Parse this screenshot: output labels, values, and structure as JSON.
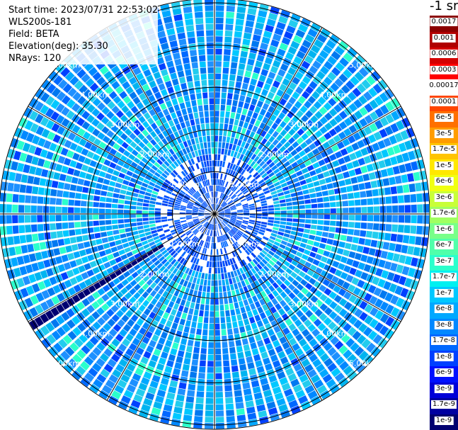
{
  "header": {
    "start_time": "Start time: 2023/07/31 22:53:02",
    "instrument": "WLS200s-181",
    "field": "Field: BETA",
    "elevation": "Elevation(deg): 35.30",
    "nrays": "NRays: 120"
  },
  "colorbar": {
    "units_label": "-1 sr",
    "levels": [
      {
        "label": "0.0017",
        "color": "#8b0000"
      },
      {
        "label": "0.001",
        "color": "#b00000"
      },
      {
        "label": "0.0006",
        "color": "#d40000"
      },
      {
        "label": "0.0003",
        "color": "#ff0000"
      },
      {
        "label": "0.00017",
        "color": "#ffffff"
      },
      {
        "label": "0.0001",
        "color": "#ff4500"
      },
      {
        "label": "6e-5",
        "color": "#ff7000"
      },
      {
        "label": "3e-5",
        "color": "#ff9c00"
      },
      {
        "label": "1.7e-5",
        "color": "#ffc400"
      },
      {
        "label": "1e-5",
        "color": "#ffe800"
      },
      {
        "label": "6e-6",
        "color": "#f0ff10"
      },
      {
        "label": "3e-6",
        "color": "#c8ff38"
      },
      {
        "label": "1.7e-6",
        "color": "#a0ff60"
      },
      {
        "label": "1e-6",
        "color": "#78ff88"
      },
      {
        "label": "6e-7",
        "color": "#50ffaa"
      },
      {
        "label": "3e-7",
        "color": "#2affcc"
      },
      {
        "label": "1.7e-7",
        "color": "#00f0f0"
      },
      {
        "label": "1e-7",
        "color": "#00c8ff"
      },
      {
        "label": "6e-8",
        "color": "#00a8ff"
      },
      {
        "label": "3e-8",
        "color": "#0088ff"
      },
      {
        "label": "1.7e-8",
        "color": "#0068ff"
      },
      {
        "label": "1e-8",
        "color": "#0040ff"
      },
      {
        "label": "6e-9",
        "color": "#0010ff"
      },
      {
        "label": "3e-9",
        "color": "#0000d8"
      },
      {
        "label": "1.7e-9",
        "color": "#0000a0"
      },
      {
        "label": "1e-9",
        "color": "#000070"
      }
    ]
  },
  "chart_data": {
    "type": "heatmap",
    "projection": "polar PPI",
    "field": "BETA",
    "n_rays": 120,
    "range_ring_labels": [
      "1.00km",
      "2.00km",
      "3.00km",
      "4.00km",
      "5.00km"
    ],
    "ring_ranges_km": [
      1,
      2,
      3,
      4,
      5
    ],
    "max_range_km": 5.1,
    "spoke_bearings_deg": [
      0,
      30,
      60,
      90,
      120,
      150,
      180,
      210,
      240,
      270,
      300,
      330
    ],
    "blocked_sector_bearing_deg": 238,
    "dominant_value_range": [
      "6e-8",
      "1.7e-7"
    ],
    "color_scale": "log"
  }
}
